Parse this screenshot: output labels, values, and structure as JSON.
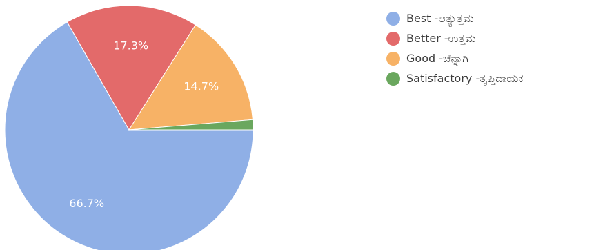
{
  "chart_data": {
    "type": "pie",
    "title": "",
    "series": [
      {
        "name": "Best -ಅತ್ಯುತ್ತಮ",
        "value": 66.7,
        "label": "66.7%",
        "color": "#8fafe6"
      },
      {
        "name": "Better -ಉತ್ತಮ",
        "value": 17.3,
        "label": "17.3%",
        "color": "#e36a6a"
      },
      {
        "name": "Good -ಚೆನ್ನಾಗಿ",
        "value": 14.7,
        "label": "14.7%",
        "color": "#f7b266"
      },
      {
        "name": "Satisfactory -ತೃಪ್ತಿದಾಯಕ",
        "value": 1.3,
        "label": "",
        "color": "#6aa75e"
      }
    ],
    "legend_position": "right"
  }
}
